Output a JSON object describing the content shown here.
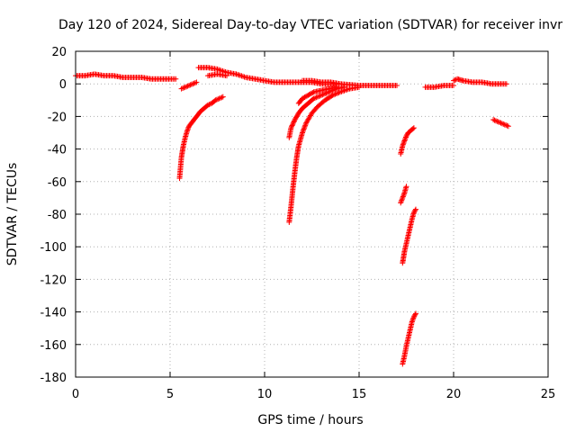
{
  "chart_data": {
    "type": "scatter",
    "title": "Day 120 of 2024, Sidereal Day-to-day VTEC variation (SDTVAR) for receiver invr",
    "xlabel": "GPS time / hours",
    "ylabel": "SDTVAR / TECUs",
    "xlim": [
      0,
      25
    ],
    "ylim": [
      -180,
      20
    ],
    "xticks": [
      0,
      5,
      10,
      15,
      20,
      25
    ],
    "yticks": [
      20,
      0,
      -20,
      -40,
      -60,
      -80,
      -100,
      -120,
      -140,
      -160,
      -180
    ],
    "grid": true,
    "marker": "plus",
    "series_color": "#ff0000",
    "segments": [
      [
        [
          0.0,
          5
        ],
        [
          0.5,
          5
        ],
        [
          1.0,
          6
        ],
        [
          1.5,
          5
        ],
        [
          2.0,
          5
        ],
        [
          2.5,
          4
        ],
        [
          3.0,
          4
        ],
        [
          3.5,
          4
        ],
        [
          4.0,
          3
        ],
        [
          4.5,
          3
        ],
        [
          5.0,
          3
        ],
        [
          5.3,
          3
        ]
      ],
      [
        [
          5.5,
          -58
        ],
        [
          5.6,
          -45
        ],
        [
          5.7,
          -38
        ],
        [
          5.8,
          -33
        ],
        [
          5.9,
          -29
        ],
        [
          6.0,
          -26
        ],
        [
          6.2,
          -23
        ],
        [
          6.4,
          -20
        ],
        [
          6.6,
          -17
        ],
        [
          6.8,
          -15
        ],
        [
          7.0,
          -13
        ],
        [
          7.2,
          -12
        ],
        [
          7.4,
          -10
        ],
        [
          7.6,
          -9
        ],
        [
          7.8,
          -8
        ]
      ],
      [
        [
          5.6,
          -3
        ],
        [
          5.8,
          -2
        ],
        [
          6.0,
          -1
        ],
        [
          6.2,
          0
        ],
        [
          6.4,
          1
        ]
      ],
      [
        [
          6.5,
          10
        ],
        [
          7.0,
          10
        ],
        [
          7.5,
          9
        ],
        [
          8.0,
          7
        ],
        [
          8.5,
          6
        ],
        [
          9.0,
          4
        ],
        [
          9.5,
          3
        ],
        [
          10.0,
          2
        ],
        [
          10.5,
          1
        ],
        [
          11.0,
          1
        ]
      ],
      [
        [
          7.0,
          5
        ],
        [
          7.5,
          6
        ],
        [
          8.0,
          5
        ]
      ],
      [
        [
          11.0,
          1
        ],
        [
          11.5,
          1
        ],
        [
          12.0,
          1
        ],
        [
          12.5,
          1
        ],
        [
          13.0,
          0
        ],
        [
          14.0,
          0
        ],
        [
          15.0,
          -1
        ],
        [
          16.0,
          -1
        ],
        [
          17.0,
          -1
        ]
      ],
      [
        [
          11.3,
          -85
        ],
        [
          11.4,
          -75
        ],
        [
          11.5,
          -64
        ],
        [
          11.6,
          -54
        ],
        [
          11.7,
          -45
        ],
        [
          11.8,
          -38
        ],
        [
          12.0,
          -30
        ],
        [
          12.2,
          -24
        ],
        [
          12.5,
          -18
        ],
        [
          12.8,
          -14
        ],
        [
          13.2,
          -10
        ],
        [
          13.6,
          -7
        ],
        [
          14.0,
          -5
        ],
        [
          14.5,
          -3
        ],
        [
          15.0,
          -2
        ]
      ],
      [
        [
          11.3,
          -33
        ],
        [
          11.4,
          -27
        ],
        [
          11.6,
          -22
        ],
        [
          11.8,
          -18
        ],
        [
          12.0,
          -15
        ],
        [
          12.3,
          -12
        ],
        [
          12.6,
          -9
        ],
        [
          13.0,
          -7
        ],
        [
          13.4,
          -5
        ],
        [
          13.8,
          -3
        ],
        [
          14.2,
          -2
        ]
      ],
      [
        [
          11.8,
          -12
        ],
        [
          12.0,
          -9
        ],
        [
          12.3,
          -7
        ],
        [
          12.6,
          -5
        ],
        [
          13.0,
          -4
        ],
        [
          13.4,
          -3
        ],
        [
          13.8,
          -2
        ]
      ],
      [
        [
          12.0,
          2
        ],
        [
          12.5,
          2
        ],
        [
          13.0,
          1
        ],
        [
          13.5,
          1
        ],
        [
          14.0,
          0
        ]
      ],
      [
        [
          17.2,
          -43
        ],
        [
          17.3,
          -38
        ],
        [
          17.4,
          -35
        ],
        [
          17.5,
          -32
        ],
        [
          17.6,
          -30
        ],
        [
          17.7,
          -29
        ],
        [
          17.8,
          -28
        ],
        [
          17.9,
          -27
        ]
      ],
      [
        [
          17.2,
          -73
        ],
        [
          17.3,
          -70
        ],
        [
          17.4,
          -67
        ],
        [
          17.5,
          -63
        ]
      ],
      [
        [
          17.3,
          -110
        ],
        [
          17.4,
          -103
        ],
        [
          17.5,
          -98
        ],
        [
          17.6,
          -93
        ],
        [
          17.7,
          -88
        ],
        [
          17.8,
          -83
        ],
        [
          17.9,
          -79
        ],
        [
          18.0,
          -77
        ]
      ],
      [
        [
          17.3,
          -172
        ],
        [
          17.4,
          -167
        ],
        [
          17.5,
          -161
        ],
        [
          17.6,
          -156
        ],
        [
          17.7,
          -151
        ],
        [
          17.8,
          -146
        ],
        [
          17.9,
          -143
        ],
        [
          18.0,
          -141
        ]
      ],
      [
        [
          18.5,
          -2
        ],
        [
          19.0,
          -2
        ],
        [
          19.5,
          -1
        ],
        [
          20.0,
          -1
        ]
      ],
      [
        [
          20.0,
          2
        ],
        [
          20.2,
          3
        ],
        [
          20.5,
          2
        ],
        [
          21.0,
          1
        ],
        [
          21.5,
          1
        ],
        [
          22.0,
          0
        ],
        [
          22.5,
          0
        ],
        [
          22.8,
          0
        ]
      ],
      [
        [
          22.1,
          -22
        ],
        [
          22.3,
          -23
        ],
        [
          22.5,
          -24
        ],
        [
          22.7,
          -25
        ],
        [
          22.9,
          -26
        ]
      ]
    ]
  }
}
